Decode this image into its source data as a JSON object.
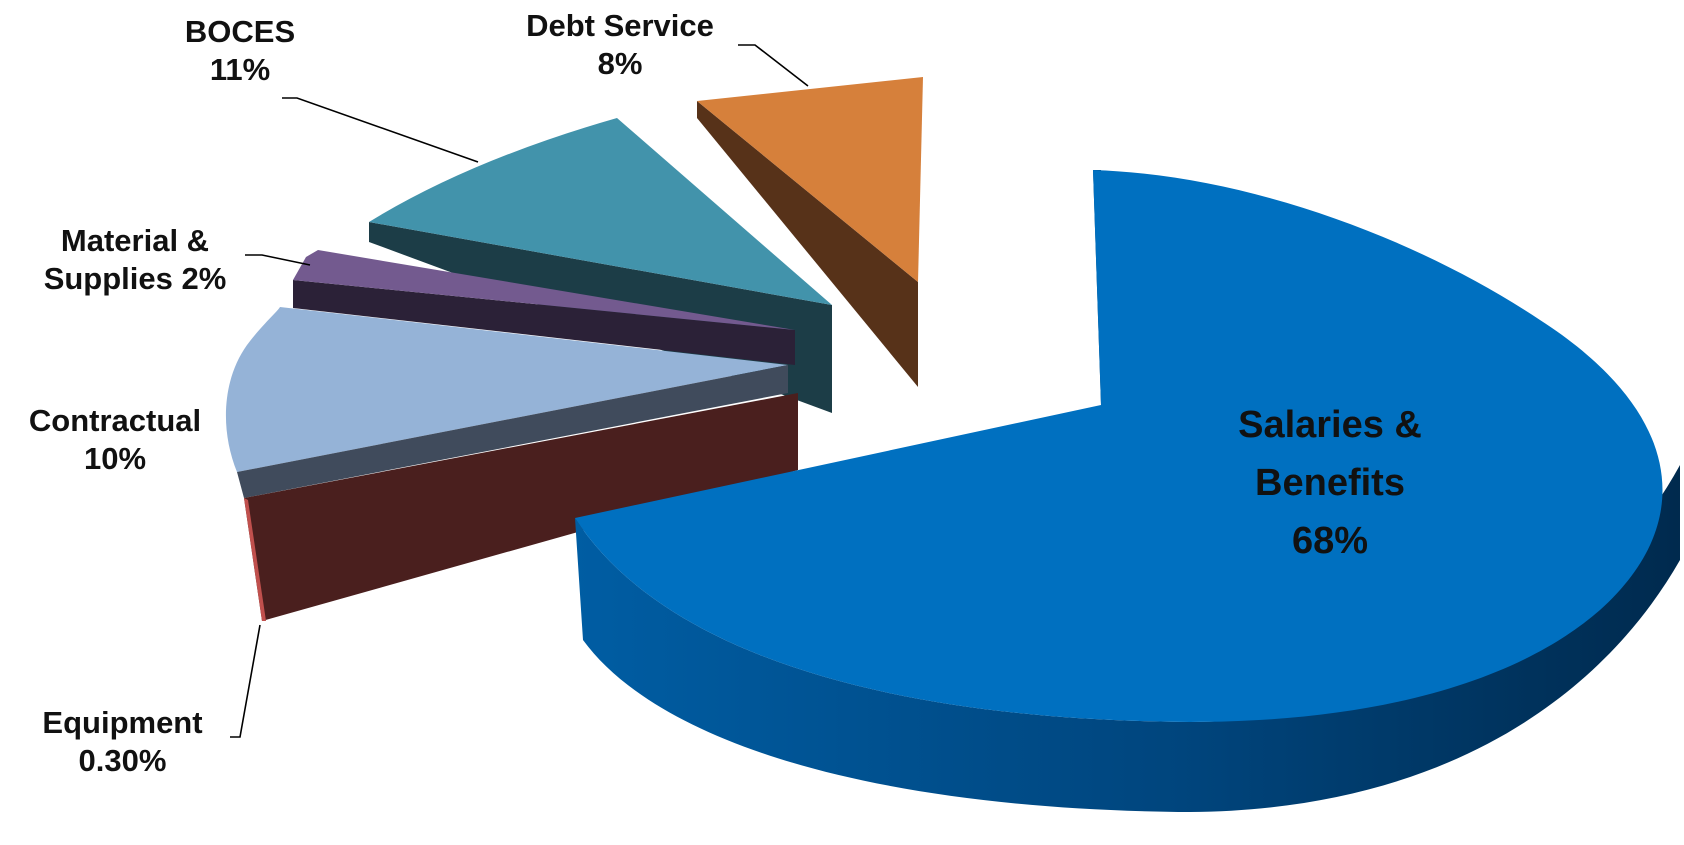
{
  "chart_data": {
    "type": "pie",
    "style": "3d-exploded",
    "legend": "none",
    "slices": [
      {
        "key": "salaries",
        "name_lines": [
          "Salaries &",
          "Benefits"
        ],
        "label": "68%",
        "value": 68,
        "color": "#0070C0"
      },
      {
        "key": "debt",
        "name_lines": [
          "Debt Service"
        ],
        "label": "8%",
        "value": 8,
        "color": "#D6803B"
      },
      {
        "key": "boces",
        "name_lines": [
          "BOCES"
        ],
        "label": "11%",
        "value": 11,
        "color": "#4293AB"
      },
      {
        "key": "materials",
        "name_lines": [
          "Material &",
          "Supplies 2%"
        ],
        "label": "",
        "value": 2,
        "color": "#735A8F"
      },
      {
        "key": "contractual",
        "name_lines": [
          "Contractual"
        ],
        "label": "10%",
        "value": 10,
        "color": "#95B3D7"
      },
      {
        "key": "equipment",
        "name_lines": [
          "Equipment"
        ],
        "label": "0.30%",
        "value": 0.3,
        "color": "#C0504D"
      }
    ]
  }
}
